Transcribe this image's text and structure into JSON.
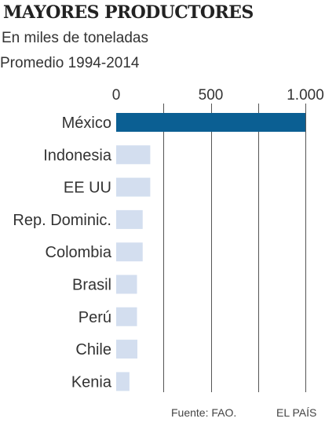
{
  "chart_data": {
    "type": "bar",
    "orientation": "horizontal",
    "title": "MAYORES PRODUCTORES",
    "subtitle": "En miles de toneladas",
    "period": "Promedio 1994-2014",
    "categories": [
      "México",
      "Indonesia",
      "EE UU",
      "Rep. Dominic.",
      "Colombia",
      "Brasil",
      "Perú",
      "Chile",
      "Kenia"
    ],
    "values": [
      1000,
      180,
      180,
      140,
      140,
      110,
      110,
      112,
      70
    ],
    "highlight_index": 0,
    "xlim": [
      0,
      1000
    ],
    "xticks": [
      0,
      500,
      1000
    ],
    "xtick_labels": [
      "0",
      "500",
      "1.000"
    ],
    "grid": true,
    "colors": {
      "highlight": "#0b5f93",
      "bar": "#d3deef",
      "grid": "#555555",
      "text": "#333333"
    }
  },
  "footer": {
    "source": "Fuente: FAO.",
    "brand": "EL PAÍS"
  }
}
